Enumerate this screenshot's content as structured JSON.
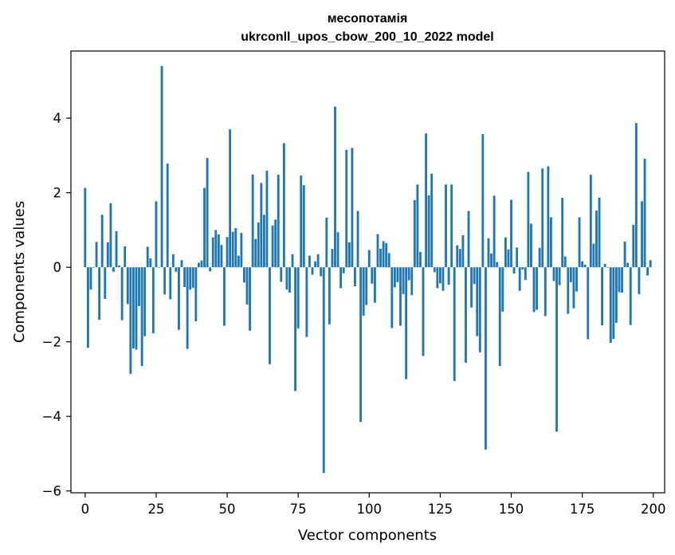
{
  "chart_data": {
    "type": "bar",
    "title": "месопотамія",
    "subtitle": "ukrconll_upos_cbow_200_10_2022 model",
    "xlabel": "Vector components",
    "ylabel": "Components values",
    "xlim": [
      -5,
      204
    ],
    "ylim": [
      -6.05,
      5.8
    ],
    "xticks": [
      0,
      25,
      50,
      75,
      100,
      125,
      150,
      175,
      200
    ],
    "yticks": [
      -6,
      -4,
      -2,
      0,
      2,
      4
    ],
    "bar_color": "#1f77b4",
    "grid": false,
    "values": [
      2.13,
      -2.16,
      -0.6,
      0.0,
      0.68,
      -1.41,
      1.41,
      -0.85,
      0.67,
      1.72,
      -0.12,
      0.97,
      0.05,
      -1.42,
      0.56,
      -0.99,
      -2.86,
      -2.18,
      -2.21,
      -1.04,
      -2.65,
      -1.85,
      0.55,
      0.24,
      -1.77,
      1.77,
      0.0,
      5.4,
      -0.73,
      2.78,
      -0.86,
      0.35,
      -0.12,
      -1.68,
      0.19,
      -0.53,
      -2.19,
      -0.6,
      -0.55,
      -1.45,
      0.12,
      0.18,
      2.13,
      2.93,
      -0.11,
      0.8,
      1.0,
      0.88,
      0.6,
      -1.57,
      0.81,
      3.7,
      0.95,
      1.05,
      0.31,
      0.92,
      -0.41,
      -1.0,
      -1.7,
      2.49,
      0.76,
      1.2,
      2.26,
      1.41,
      2.59,
      -2.6,
      1.12,
      1.28,
      2.48,
      -0.39,
      3.33,
      -0.6,
      -0.68,
      0.35,
      -3.32,
      -1.64,
      2.46,
      2.2,
      -1.87,
      0.31,
      -0.2,
      0.16,
      0.35,
      -0.24,
      -5.52,
      1.33,
      -1.53,
      0.49,
      4.31,
      0.94,
      -0.56,
      -0.16,
      3.15,
      0.67,
      3.2,
      -0.51,
      1.51,
      -4.15,
      -1.3,
      -1.01,
      0.46,
      -0.44,
      -0.95,
      0.89,
      0.5,
      0.7,
      0.65,
      0.38,
      -1.63,
      -0.54,
      -0.4,
      -1.57,
      -0.72,
      -3.0,
      -0.35,
      -0.75,
      1.8,
      2.22,
      0.41,
      -2.38,
      3.59,
      1.93,
      2.51,
      -0.13,
      -0.56,
      -0.43,
      -0.63,
      2.22,
      -0.47,
      2.22,
      -3.05,
      0.59,
      0.49,
      0.86,
      -2.56,
      1.51,
      -1.08,
      -0.45,
      -1.85,
      -2.28,
      3.57,
      -4.89,
      0.78,
      0.37,
      1.92,
      0.14,
      -2.65,
      -1.19,
      0.8,
      0.48,
      1.81,
      -0.17,
      0.53,
      -0.63,
      -0.06,
      -0.34,
      2.56,
      1.17,
      -1.2,
      -1.14,
      0.52,
      2.65,
      -1.31,
      2.71,
      1.34,
      -0.37,
      -4.41,
      -0.48,
      1.86,
      0.29,
      -1.25,
      -0.4,
      -1.1,
      -0.65,
      1.34,
      0.16,
      0.07,
      -1.93,
      2.48,
      0.63,
      1.52,
      1.87,
      -1.56,
      0.09,
      0.0,
      -2.03,
      -1.92,
      -1.49,
      -0.67,
      -0.68,
      0.69,
      0.12,
      -1.55,
      1.14,
      3.87,
      -0.72,
      1.77,
      2.91,
      -0.22,
      0.19
    ]
  }
}
